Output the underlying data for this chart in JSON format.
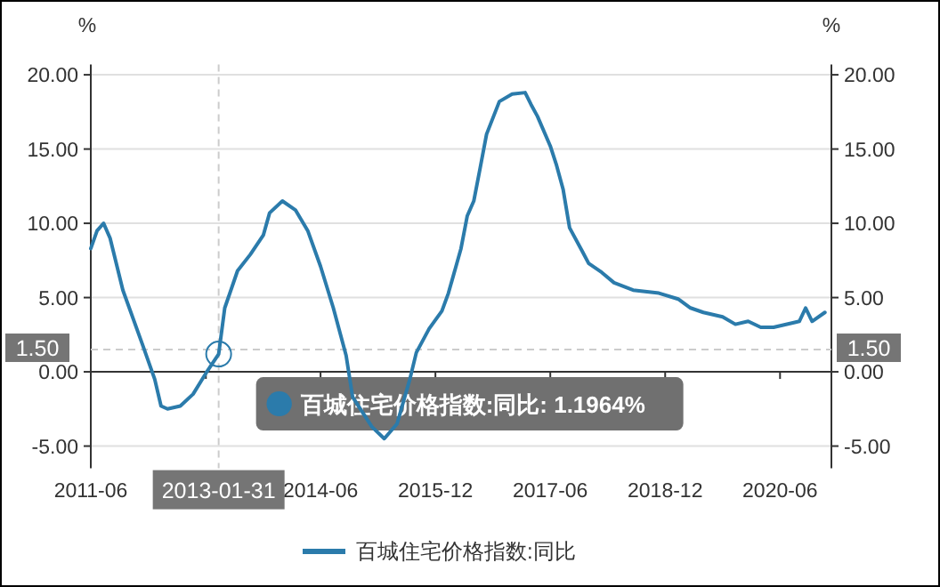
{
  "chart_data": {
    "type": "line",
    "ylabel": "%",
    "y2label": "%",
    "x": [
      "2011-06",
      "2011-07",
      "2011-08",
      "2011-09",
      "2011-11",
      "2012-02",
      "2012-04",
      "2012-05",
      "2012-06",
      "2012-08",
      "2012-10",
      "2012-12",
      "2013-01-31",
      "2013-03",
      "2013-05",
      "2013-07",
      "2013-09",
      "2013-10",
      "2013-12",
      "2014-02",
      "2014-04",
      "2014-06",
      "2014-08",
      "2014-10",
      "2014-11",
      "2015-02",
      "2015-04",
      "2015-06",
      "2015-08",
      "2015-09",
      "2015-11",
      "2016-01",
      "2016-02",
      "2016-04",
      "2016-05",
      "2016-06",
      "2016-07",
      "2016-08",
      "2016-10",
      "2016-12",
      "2017-02",
      "2017-03",
      "2017-04",
      "2017-06",
      "2017-07",
      "2017-08",
      "2017-09",
      "2017-11",
      "2017-12",
      "2018-02",
      "2018-04",
      "2018-07",
      "2018-11",
      "2019-02",
      "2019-04",
      "2019-06",
      "2019-09",
      "2019-11",
      "2020-01",
      "2020-03",
      "2020-05",
      "2020-08",
      "2020-09",
      "2020-10",
      "2020-11",
      "2021-01"
    ],
    "series": [
      {
        "name": "百城住宅价格指数:同比",
        "color": "#2b7bab",
        "values": [
          8.3,
          9.5,
          10.0,
          9.0,
          5.5,
          1.9,
          -0.5,
          -2.3,
          -2.5,
          -2.3,
          -1.5,
          -0.1,
          1.1964,
          4.3,
          6.8,
          7.9,
          9.2,
          10.7,
          11.5,
          10.9,
          9.5,
          7.1,
          4.3,
          1.1,
          -1.7,
          -3.7,
          -4.5,
          -3.5,
          -0.5,
          1.3,
          2.9,
          4.1,
          5.3,
          8.3,
          10.5,
          11.5,
          13.7,
          16.0,
          18.2,
          18.7,
          18.8,
          18.0,
          17.2,
          15.2,
          13.9,
          12.3,
          9.7,
          8.1,
          7.3,
          6.7,
          6.0,
          5.5,
          5.3,
          4.9,
          4.3,
          4.0,
          3.7,
          3.2,
          3.4,
          3.0,
          3.0,
          3.3,
          3.4,
          4.3,
          3.4,
          4.0
        ]
      }
    ],
    "xlim": [
      "2011-06",
      "2021-02"
    ],
    "xticks": [
      "2011-06",
      {
        "value": "2012-12",
        "label": null
      },
      "2014-06",
      "2015-12",
      "2017-06",
      "2018-12",
      "2020-06"
    ],
    "ylim": [
      -6.5,
      20.7
    ],
    "yticks": [
      {
        "value": -5,
        "label": "-5.00"
      },
      {
        "value": 0,
        "label": "0.00"
      },
      {
        "value": 5,
        "label": "5.00"
      },
      {
        "value": 10,
        "label": "10.00"
      },
      {
        "value": 15,
        "label": "15.00"
      },
      {
        "value": 20,
        "label": "20.00"
      }
    ],
    "y2lim": [
      -6.5,
      20.7
    ],
    "y2ticks": [
      {
        "value": -5,
        "label": "-5.00"
      },
      {
        "value": 0,
        "label": "0.00"
      },
      {
        "value": 5,
        "label": "5.00"
      },
      {
        "value": 10,
        "label": "10.00"
      },
      {
        "value": 15,
        "label": "15.00"
      },
      {
        "value": 20,
        "label": "20.00"
      }
    ],
    "ref_lines": [
      {
        "axis": "x",
        "value": "2013-01-31",
        "label": "2013-01-31",
        "line_style": "dashed",
        "color": "#cccccc"
      },
      {
        "axis": "y",
        "value": 1.5,
        "label": "1.50",
        "line_style": "dashed",
        "color": "#cccccc"
      }
    ],
    "annotations": [
      "百城住宅价格指数:同比: 1.1964%"
    ],
    "grid": "y",
    "legend": "bottom"
  }
}
